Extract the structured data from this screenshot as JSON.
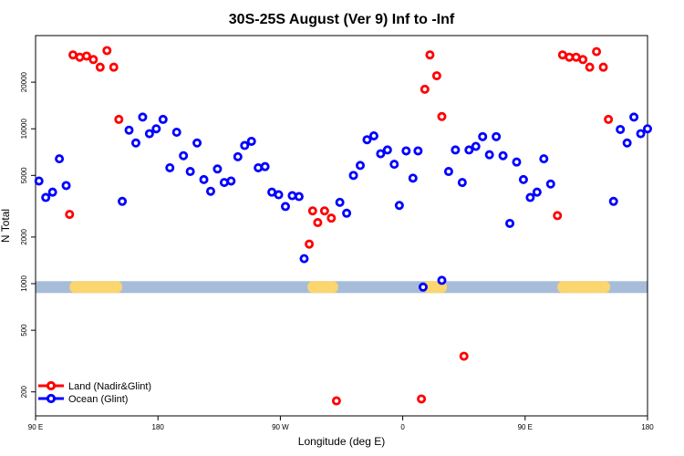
{
  "chart_data": {
    "type": "scatter",
    "title": "30S-25S August (Ver 9)   Inf to -Inf",
    "xlabel": "Longitude (deg E)",
    "ylabel": "N Total",
    "y_scale": "log",
    "xlim": [
      0,
      360
    ],
    "ylim": [
      140,
      40000
    ],
    "x_ticks": [
      {
        "value": 0,
        "label": "90 E"
      },
      {
        "value": 72,
        "label": "180"
      },
      {
        "value": 144,
        "label": "90 W"
      },
      {
        "value": 216,
        "label": "0"
      },
      {
        "value": 288,
        "label": "90 E"
      },
      {
        "value": 360,
        "label": "180"
      }
    ],
    "y_ticks": [
      {
        "value": 200,
        "label": "200"
      },
      {
        "value": 500,
        "label": "500"
      },
      {
        "value": 1000,
        "label": "1000"
      },
      {
        "value": 2000,
        "label": "2000"
      },
      {
        "value": 5000,
        "label": "5000"
      },
      {
        "value": 10000,
        "label": "10000"
      },
      {
        "value": 20000,
        "label": "20000"
      }
    ],
    "band": {
      "value": 950,
      "color": "#a7bcd8",
      "highlight_color": "#fbd66e",
      "highlight_ranges": [
        [
          20,
          51
        ],
        [
          160,
          178
        ],
        [
          228,
          242
        ],
        [
          307,
          338
        ]
      ]
    },
    "series": [
      {
        "name": "Land (Nadir&Glint)",
        "color": "#ff0000",
        "points": [
          [
            20,
            2800
          ],
          [
            22,
            30000
          ],
          [
            26,
            29000
          ],
          [
            30,
            29500
          ],
          [
            34,
            28000
          ],
          [
            38,
            25000
          ],
          [
            42,
            32000
          ],
          [
            46,
            25000
          ],
          [
            49,
            11500
          ],
          [
            161,
            1800
          ],
          [
            163,
            2950
          ],
          [
            166,
            2480
          ],
          [
            170,
            2950
          ],
          [
            174,
            2650
          ],
          [
            177,
            175
          ],
          [
            227,
            180
          ],
          [
            229,
            18000
          ],
          [
            232,
            30000
          ],
          [
            236,
            22000
          ],
          [
            239,
            12000
          ],
          [
            252,
            340
          ],
          [
            307,
            2750
          ],
          [
            310,
            30000
          ],
          [
            314,
            29000
          ],
          [
            318,
            29000
          ],
          [
            322,
            28000
          ],
          [
            326,
            25000
          ],
          [
            330,
            31500
          ],
          [
            334,
            25000
          ],
          [
            337,
            11500
          ]
        ]
      },
      {
        "name": "Ocean (Glint)",
        "color": "#0000ff",
        "points": [
          [
            2,
            4600
          ],
          [
            6,
            3600
          ],
          [
            10,
            3900
          ],
          [
            14,
            6400
          ],
          [
            18,
            4300
          ],
          [
            51,
            3400
          ],
          [
            55,
            9800
          ],
          [
            59,
            8100
          ],
          [
            63,
            11900
          ],
          [
            67,
            9300
          ],
          [
            71,
            10000
          ],
          [
            75,
            11500
          ],
          [
            79,
            5600
          ],
          [
            83,
            9500
          ],
          [
            87,
            6700
          ],
          [
            91,
            5300
          ],
          [
            95,
            8100
          ],
          [
            99,
            4700
          ],
          [
            103,
            3950
          ],
          [
            107,
            5500
          ],
          [
            111,
            4500
          ],
          [
            115,
            4600
          ],
          [
            119,
            6600
          ],
          [
            123,
            7800
          ],
          [
            127,
            8300
          ],
          [
            131,
            5600
          ],
          [
            135,
            5700
          ],
          [
            139,
            3900
          ],
          [
            143,
            3750
          ],
          [
            147,
            3150
          ],
          [
            151,
            3700
          ],
          [
            155,
            3650
          ],
          [
            158,
            1450
          ],
          [
            179,
            3350
          ],
          [
            183,
            2850
          ],
          [
            187,
            5000
          ],
          [
            191,
            5800
          ],
          [
            195,
            8500
          ],
          [
            199,
            9000
          ],
          [
            203,
            6900
          ],
          [
            207,
            7300
          ],
          [
            211,
            5900
          ],
          [
            214,
            3200
          ],
          [
            218,
            7200
          ],
          [
            222,
            4800
          ],
          [
            225,
            7200
          ],
          [
            228,
            950
          ],
          [
            239,
            1050
          ],
          [
            243,
            5300
          ],
          [
            247,
            7300
          ],
          [
            251,
            4500
          ],
          [
            255,
            7300
          ],
          [
            259,
            7700
          ],
          [
            263,
            8900
          ],
          [
            267,
            6800
          ],
          [
            271,
            8900
          ],
          [
            275,
            6700
          ],
          [
            279,
            2450
          ],
          [
            283,
            6100
          ],
          [
            287,
            4700
          ],
          [
            291,
            3600
          ],
          [
            295,
            3900
          ],
          [
            299,
            6400
          ],
          [
            303,
            4400
          ],
          [
            340,
            3400
          ],
          [
            344,
            9900
          ],
          [
            348,
            8100
          ],
          [
            352,
            11900
          ],
          [
            356,
            9300
          ],
          [
            360,
            10000
          ]
        ]
      }
    ],
    "legend": {
      "position": "bottom-left",
      "entries": [
        "Land (Nadir&Glint)",
        "Ocean (Glint)"
      ]
    }
  }
}
